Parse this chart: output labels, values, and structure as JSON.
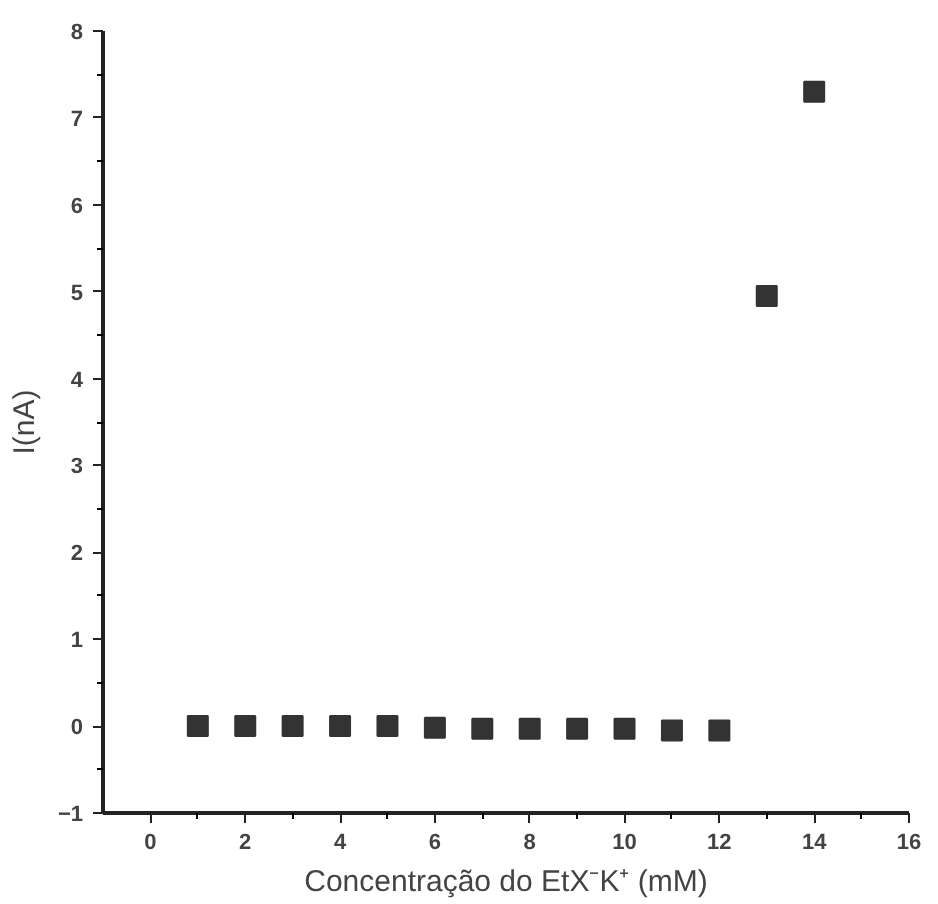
{
  "chart_data": {
    "type": "scatter",
    "xlabel": "Concentração do EtX⁻K⁺ (mM)",
    "ylabel": "I(nA)",
    "x": [
      1,
      2,
      3,
      4,
      5,
      6,
      7,
      8,
      9,
      10,
      11,
      12,
      13,
      14
    ],
    "series": [
      {
        "color": "#333333",
        "values": [
          0,
          0,
          0,
          0,
          0,
          -0.02,
          -0.03,
          -0.03,
          -0.03,
          -0.03,
          -0.05,
          -0.05,
          4.95,
          7.3
        ]
      }
    ],
    "xlim": [
      -1,
      16
    ],
    "xticks": [
      0,
      2,
      4,
      6,
      8,
      10,
      12,
      14,
      16
    ],
    "ylim": [
      -1,
      8
    ],
    "yticks": [
      -1,
      0,
      1,
      2,
      3,
      4,
      5,
      6,
      7,
      8
    ],
    "grid": false,
    "marker": "square"
  }
}
